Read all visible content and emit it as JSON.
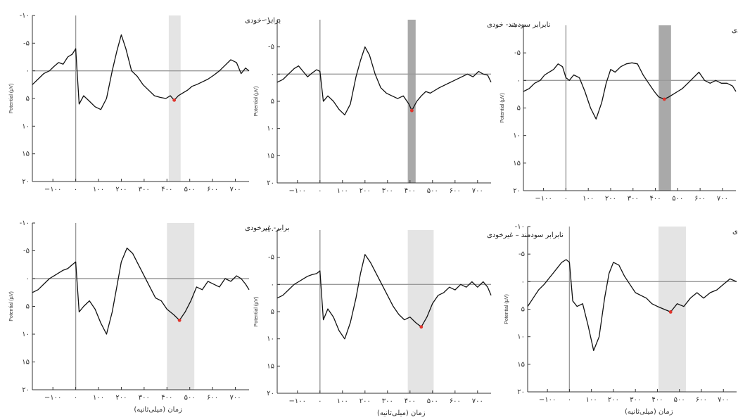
{
  "figure": {
    "background": "#ffffff"
  },
  "colors": {
    "trace": "#111111",
    "baseline": "#9a9a9a",
    "peak": "#e0342c",
    "window_light": "#e4e4e4",
    "window_dark": "#a9a9a9"
  },
  "chart_data": [
    {
      "type": "line",
      "title": "برابر –خودی",
      "ylabel": "Potential (µV)",
      "xlabel": "",
      "xlim": [
        -190,
        760
      ],
      "ylim": [
        -10,
        20
      ],
      "y_inverted": true,
      "y_ticks": [
        -10,
        -5,
        0,
        5,
        10,
        15,
        20
      ],
      "y_tick_labels": [
        "-۱۰",
        "-۵",
        "۰",
        "۵",
        "۱۰",
        "۱۵",
        "۲۰"
      ],
      "x_ticks": [
        -100,
        0,
        100,
        200,
        300,
        400,
        500,
        600,
        700
      ],
      "x_tick_labels": [
        "−۱۰۰",
        "۰",
        "۱۰۰",
        "۲۰۰",
        "۳۰۰",
        "۴۰۰",
        "۵۰۰",
        "۶۰۰",
        "۷۰۰"
      ],
      "highlight_window": [
        408,
        460
      ],
      "window_shade": "light",
      "peak": {
        "x": 432,
        "y": 5.3
      },
      "series": [
        {
          "x": [
            -190,
            -165,
            -140,
            -115,
            -95,
            -75,
            -55,
            -35,
            -15,
            0,
            15,
            35,
            60,
            85,
            110,
            135,
            160,
            180,
            200,
            220,
            245,
            270,
            295,
            320,
            345,
            370,
            395,
            415,
            432,
            450,
            470,
            490,
            510,
            530,
            555,
            580,
            605,
            630,
            655,
            680,
            705,
            725,
            745,
            760
          ],
          "y": [
            2.5,
            1.5,
            0.5,
            0.0,
            -0.8,
            -1.5,
            -1.2,
            -2.5,
            -3.0,
            -4.0,
            6.0,
            4.5,
            5.5,
            6.5,
            7.0,
            5.0,
            0.0,
            -3.5,
            -6.5,
            -4.0,
            0.0,
            1.0,
            2.5,
            3.5,
            4.5,
            4.8,
            5.0,
            4.5,
            5.3,
            4.5,
            4.0,
            3.5,
            2.8,
            2.5,
            2.0,
            1.5,
            0.8,
            0.0,
            -1.0,
            -2.0,
            -1.5,
            0.5,
            -0.5,
            0.0
          ]
        }
      ]
    },
    {
      "type": "line",
      "title": "نابرابر سودمند- خودی",
      "ylabel": "Potential (µV)",
      "xlabel": "",
      "xlim": [
        -190,
        760
      ],
      "ylim": [
        -10,
        20
      ],
      "y_inverted": true,
      "y_ticks": [
        -10,
        -5,
        0,
        5,
        10,
        15,
        20
      ],
      "y_tick_labels": [
        "-۱۰",
        "-۵",
        "۰",
        "۵",
        "۱۰",
        "۱۵",
        "۲۰"
      ],
      "x_ticks": [
        -100,
        0,
        100,
        200,
        300,
        400,
        500,
        600,
        700
      ],
      "x_tick_labels": [
        "−۱۰۰",
        "۰",
        "۱۰۰",
        "۲۰۰",
        "۳۰۰",
        "۴۰۰",
        "۵۰۰",
        "۶۰۰",
        "۷۰۰"
      ],
      "highlight_window": [
        390,
        425
      ],
      "window_shade": "dark",
      "peak": {
        "x": 408,
        "y": 6.7
      },
      "series": [
        {
          "x": [
            -190,
            -165,
            -140,
            -115,
            -95,
            -75,
            -55,
            -35,
            -15,
            0,
            15,
            35,
            60,
            85,
            110,
            135,
            160,
            180,
            200,
            220,
            245,
            270,
            295,
            320,
            345,
            370,
            395,
            408,
            430,
            450,
            470,
            490,
            510,
            530,
            555,
            580,
            605,
            630,
            655,
            680,
            705,
            725,
            745,
            760
          ],
          "y": [
            1.5,
            1.0,
            0.0,
            -1.0,
            -1.5,
            -0.5,
            0.5,
            -0.2,
            -0.8,
            -0.5,
            5.0,
            4.0,
            5.0,
            6.5,
            7.5,
            5.5,
            0.5,
            -2.5,
            -5.0,
            -3.5,
            0.0,
            2.5,
            3.5,
            4.0,
            4.5,
            4.0,
            5.5,
            6.7,
            5.0,
            4.0,
            3.2,
            3.5,
            3.0,
            2.5,
            2.0,
            1.5,
            1.0,
            0.5,
            0.0,
            0.5,
            -0.5,
            0.0,
            0.2,
            1.5
          ]
        }
      ]
    },
    {
      "type": "line",
      "title": "نابرابر ناسودمند- خودی",
      "ylabel": "Potential (µV)",
      "xlabel": "",
      "xlim": [
        -190,
        760
      ],
      "ylim": [
        -10,
        20
      ],
      "y_inverted": true,
      "y_ticks": [
        -10,
        -5,
        0,
        5,
        10,
        15,
        20
      ],
      "y_tick_labels": [
        "-۱۰",
        "-۵",
        "۰",
        "۵",
        "۱۰",
        "۱۵",
        "۲۰"
      ],
      "x_ticks": [
        -100,
        0,
        100,
        200,
        300,
        400,
        500,
        600,
        700
      ],
      "x_tick_labels": [
        "−۱۰۰",
        "۰",
        "۱۰۰",
        "۲۰۰",
        "۳۰۰",
        "۴۰۰",
        "۵۰۰",
        "۶۰۰",
        "۷۰۰"
      ],
      "highlight_window": [
        415,
        470
      ],
      "window_shade": "dark",
      "peak": {
        "x": 440,
        "y": 3.4
      },
      "series": [
        {
          "x": [
            -190,
            -165,
            -140,
            -115,
            -95,
            -75,
            -55,
            -35,
            -15,
            0,
            15,
            35,
            60,
            85,
            110,
            135,
            160,
            180,
            200,
            220,
            245,
            270,
            295,
            320,
            345,
            370,
            395,
            415,
            440,
            460,
            480,
            500,
            520,
            545,
            570,
            595,
            620,
            645,
            670,
            695,
            720,
            745,
            760
          ],
          "y": [
            2.0,
            1.5,
            0.5,
            0.0,
            -1.0,
            -1.5,
            -2.0,
            -3.0,
            -2.5,
            -0.5,
            0.0,
            -1.0,
            -0.5,
            2.0,
            5.0,
            7.0,
            4.0,
            0.5,
            -2.0,
            -1.5,
            -2.5,
            -3.0,
            -3.2,
            -3.0,
            -1.0,
            0.5,
            2.0,
            3.0,
            3.4,
            3.0,
            2.5,
            2.0,
            1.5,
            0.5,
            -0.5,
            -1.5,
            0.0,
            0.5,
            0.0,
            0.5,
            0.5,
            1.0,
            2.0
          ]
        }
      ]
    },
    {
      "type": "line",
      "title": "برابر- غیرخودی",
      "ylabel": "Potential (µV)",
      "xlabel": "زمان (میلی‌ثانیه)",
      "xlim": [
        -190,
        760
      ],
      "ylim": [
        -10,
        20
      ],
      "y_inverted": true,
      "y_ticks": [
        -10,
        -5,
        0,
        5,
        10,
        15,
        20
      ],
      "y_tick_labels": [
        "-۱۰",
        "-۵",
        "۰",
        "۵",
        "۱۰",
        "۱۵",
        "۲۰"
      ],
      "x_ticks": [
        -100,
        0,
        100,
        200,
        300,
        400,
        500,
        600,
        700
      ],
      "x_tick_labels": [
        "−۱۰۰",
        "۰",
        "۱۰۰",
        "۲۰۰",
        "۳۰۰",
        "۴۰۰",
        "۵۰۰",
        "۶۰۰",
        "۷۰۰"
      ],
      "highlight_window": [
        400,
        520
      ],
      "window_shade": "light",
      "peak": {
        "x": 455,
        "y": 7.5
      },
      "series": [
        {
          "x": [
            -190,
            -165,
            -140,
            -115,
            -95,
            -75,
            -55,
            -35,
            -15,
            0,
            15,
            35,
            60,
            85,
            110,
            135,
            160,
            180,
            200,
            225,
            250,
            275,
            300,
            325,
            350,
            375,
            400,
            430,
            455,
            480,
            505,
            530,
            555,
            580,
            605,
            630,
            655,
            680,
            705,
            725,
            745,
            760
          ],
          "y": [
            2.5,
            2.0,
            1.0,
            0.0,
            -0.5,
            -1.0,
            -1.5,
            -1.8,
            -2.5,
            -3.0,
            6.0,
            5.0,
            4.0,
            5.5,
            8.0,
            10.0,
            6.0,
            1.5,
            -3.0,
            -5.5,
            -4.5,
            -2.5,
            -0.5,
            1.5,
            3.5,
            4.0,
            5.5,
            6.5,
            7.5,
            6.0,
            4.0,
            1.5,
            2.0,
            0.5,
            1.0,
            1.5,
            0.0,
            0.5,
            -0.5,
            0.0,
            1.0,
            2.0
          ]
        }
      ]
    },
    {
      "type": "line",
      "title": "نابرابر سودمند – غیرخودی",
      "ylabel": "Potential (µV)",
      "xlabel": "زمان (میلی‌ثانیه)",
      "xlim": [
        -190,
        760
      ],
      "ylim": [
        -10,
        20
      ],
      "y_inverted": true,
      "y_ticks": [
        -10,
        -5,
        0,
        5,
        10,
        15,
        20
      ],
      "y_tick_labels": [
        "-۱۰",
        "-۵",
        "۰",
        "۵",
        "۱۰",
        "۱۵",
        "۲۰"
      ],
      "x_ticks": [
        -100,
        0,
        100,
        200,
        300,
        400,
        500,
        600,
        700
      ],
      "x_tick_labels": [
        "−۱۰۰",
        "۰",
        "۱۰۰",
        "۲۰۰",
        "۳۰۰",
        "۴۰۰",
        "۵۰۰",
        "۶۰۰",
        "۷۰۰"
      ],
      "highlight_window": [
        390,
        505
      ],
      "window_shade": "light",
      "peak": {
        "x": 450,
        "y": 7.8
      },
      "series": [
        {
          "x": [
            -190,
            -165,
            -140,
            -115,
            -95,
            -75,
            -55,
            -35,
            -15,
            0,
            15,
            35,
            60,
            85,
            110,
            135,
            160,
            180,
            200,
            225,
            250,
            275,
            300,
            325,
            350,
            375,
            400,
            425,
            450,
            475,
            500,
            525,
            550,
            575,
            600,
            625,
            650,
            675,
            700,
            725,
            745,
            760
          ],
          "y": [
            2.5,
            2.0,
            1.0,
            0.0,
            -0.5,
            -1.0,
            -1.5,
            -1.8,
            -2.0,
            -2.5,
            6.5,
            4.5,
            6.0,
            8.5,
            10.0,
            7.0,
            2.5,
            -2.0,
            -5.5,
            -4.0,
            -2.0,
            0.0,
            2.0,
            4.0,
            5.5,
            6.5,
            6.0,
            7.0,
            7.8,
            6.0,
            3.5,
            2.0,
            1.5,
            0.5,
            1.0,
            0.0,
            0.5,
            -0.5,
            0.5,
            -0.5,
            0.5,
            2.0
          ]
        }
      ]
    },
    {
      "type": "line",
      "title": "نابرابر ناسودمند- غیرخودی",
      "ylabel": "Potential (µV)",
      "xlabel": "زمان (میلی‌ثانیه)",
      "xlim": [
        -190,
        760
      ],
      "ylim": [
        -10,
        20
      ],
      "y_inverted": true,
      "y_ticks": [
        -10,
        -5,
        0,
        5,
        10,
        15,
        20
      ],
      "y_tick_labels": [
        "-۱۰",
        "-۵",
        "۰",
        "۵",
        "۱۰",
        "۱۵",
        "۲۰"
      ],
      "x_ticks": [
        -100,
        0,
        100,
        200,
        300,
        400,
        500,
        600,
        700
      ],
      "x_tick_labels": [
        "−۱۰۰",
        "۰",
        "۱۰۰",
        "۲۰۰",
        "۳۰۰",
        "۴۰۰",
        "۵۰۰",
        "۶۰۰",
        "۷۰۰"
      ],
      "highlight_window": [
        405,
        530
      ],
      "window_shade": "light",
      "peak": {
        "x": 460,
        "y": 5.5
      },
      "series": [
        {
          "x": [
            -190,
            -165,
            -140,
            -115,
            -95,
            -75,
            -55,
            -35,
            -15,
            0,
            15,
            35,
            60,
            85,
            110,
            135,
            160,
            180,
            200,
            225,
            250,
            275,
            300,
            325,
            350,
            375,
            400,
            430,
            460,
            490,
            520,
            550,
            580,
            610,
            640,
            670,
            700,
            730,
            760
          ],
          "y": [
            4.5,
            3.0,
            1.5,
            0.5,
            -0.5,
            -1.5,
            -2.5,
            -3.5,
            -4.0,
            -3.5,
            3.5,
            4.5,
            4.0,
            8.0,
            12.5,
            10.0,
            3.0,
            -1.5,
            -3.5,
            -3.0,
            -1.0,
            0.5,
            2.0,
            2.5,
            3.0,
            4.0,
            4.5,
            5.0,
            5.5,
            4.0,
            4.5,
            3.0,
            2.0,
            3.0,
            2.0,
            1.5,
            0.5,
            -0.5,
            0.0
          ]
        }
      ]
    }
  ]
}
